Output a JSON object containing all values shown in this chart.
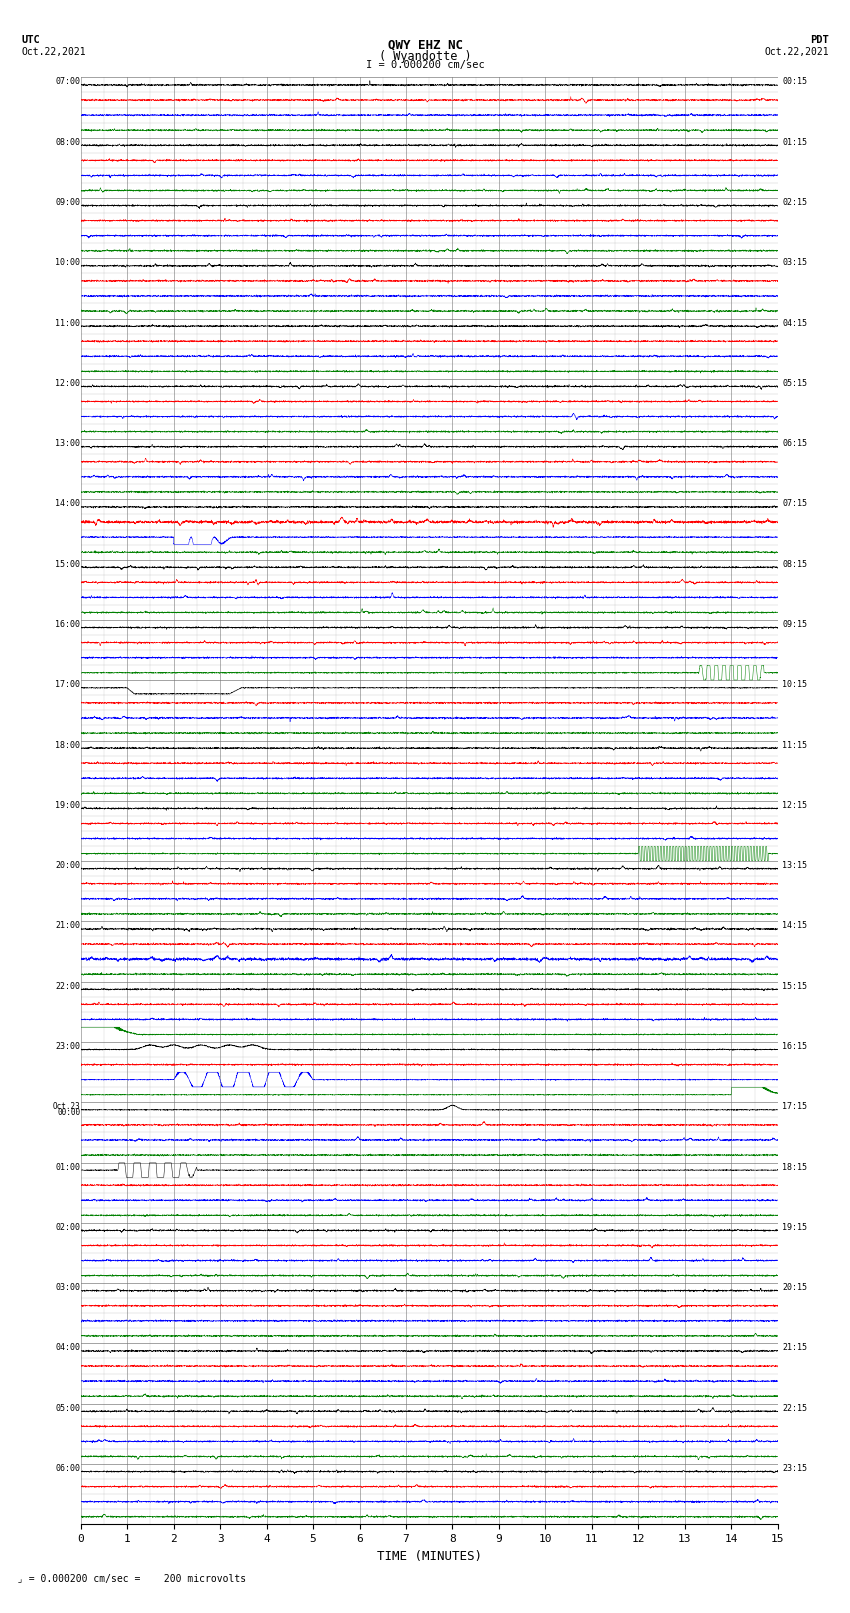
{
  "title_line1": "QWY EHZ NC",
  "title_line2": "( Wyandotte )",
  "title_scale": "I = 0.000200 cm/sec",
  "left_label_top": "UTC",
  "left_label_date": "Oct.22,2021",
  "right_label_top": "PDT",
  "right_label_date": "Oct.22,2021",
  "bottom_label": "TIME (MINUTES)",
  "scale_label": "= 0.000200 cm/sec =    200 microvolts",
  "utc_times": [
    "07:00",
    "08:00",
    "09:00",
    "10:00",
    "11:00",
    "12:00",
    "13:00",
    "14:00",
    "15:00",
    "16:00",
    "17:00",
    "18:00",
    "19:00",
    "20:00",
    "21:00",
    "22:00",
    "23:00",
    "Oct.23\n00:00",
    "01:00",
    "02:00",
    "03:00",
    "04:00",
    "05:00",
    "06:00"
  ],
  "pdt_times": [
    "00:15",
    "01:15",
    "02:15",
    "03:15",
    "04:15",
    "05:15",
    "06:15",
    "07:15",
    "08:15",
    "09:15",
    "10:15",
    "11:15",
    "12:15",
    "13:15",
    "14:15",
    "15:15",
    "16:15",
    "17:15",
    "18:15",
    "19:15",
    "20:15",
    "21:15",
    "22:15",
    "23:15"
  ],
  "n_hours": 24,
  "n_subrows": 4,
  "n_minutes": 15,
  "background_color": "#ffffff",
  "grid_color": "#777777",
  "sub_colors": [
    "black",
    "red",
    "blue",
    "green"
  ],
  "fig_width": 8.5,
  "fig_height": 16.13
}
